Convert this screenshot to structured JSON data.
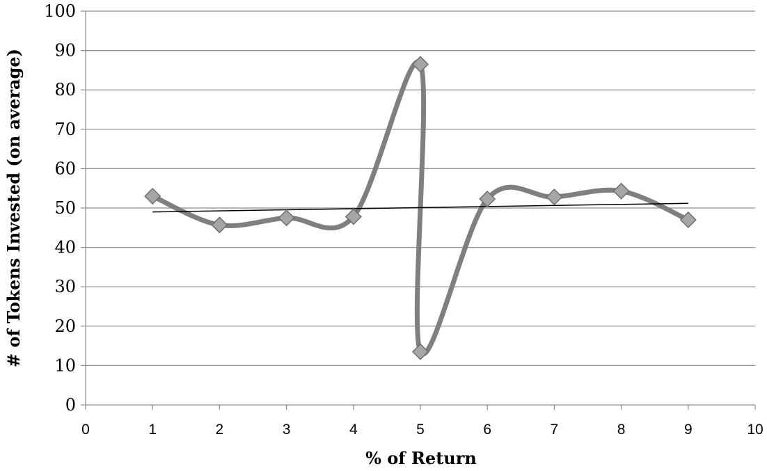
{
  "chart_data": {
    "type": "line",
    "title": "",
    "xlabel": "% of Return",
    "ylabel": "# of Tokens Invested (on average)",
    "xlim": [
      0,
      10
    ],
    "ylim": [
      0,
      100
    ],
    "x_ticks": [
      "0",
      "1",
      "2",
      "3",
      "4",
      "5",
      "6",
      "7",
      "8",
      "9",
      "10"
    ],
    "y_ticks": [
      "0",
      "10",
      "20",
      "30",
      "40",
      "50",
      "60",
      "70",
      "80",
      "90",
      "100"
    ],
    "grid": "horizontal",
    "legend": "none",
    "smoothed": true,
    "marker": "diamond",
    "series": [
      {
        "x": [
          1,
          2,
          3,
          4,
          5,
          5,
          6,
          7,
          8,
          9
        ],
        "y": [
          53,
          45.7,
          47.5,
          47.8,
          86.5,
          13.5,
          52.3,
          52.8,
          54.3,
          47
        ],
        "color": "#7f7f7f",
        "marker_color": "#a6a6a6"
      }
    ],
    "trendline": {
      "type": "linear",
      "x": [
        1,
        9
      ],
      "y": [
        49,
        51.2
      ],
      "color": "#000000"
    }
  }
}
